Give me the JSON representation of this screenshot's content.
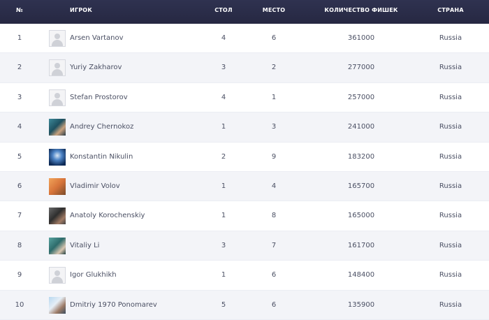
{
  "headers": {
    "num": "№",
    "player": "ИГРОК",
    "table": "СТОЛ",
    "place": "МЕСТО",
    "chips": "КОЛИЧЕСТВО ФИШЕК",
    "country": "СТРАНА"
  },
  "rows": [
    {
      "num": "1",
      "player": "Arsen Vartanov",
      "table": "4",
      "place": "6",
      "chips": "361000",
      "country": "Russia",
      "avatar": "placeholder-avatar-icon"
    },
    {
      "num": "2",
      "player": "Yuriy Zakharov",
      "table": "3",
      "place": "2",
      "chips": "277000",
      "country": "Russia",
      "avatar": "placeholder-avatar-icon"
    },
    {
      "num": "3",
      "player": "Stefan Prostorov",
      "table": "4",
      "place": "1",
      "chips": "257000",
      "country": "Russia",
      "avatar": "placeholder-avatar-icon"
    },
    {
      "num": "4",
      "player": "Andrey Chernokoz",
      "table": "1",
      "place": "3",
      "chips": "241000",
      "country": "Russia",
      "avatar": "player-photo"
    },
    {
      "num": "5",
      "player": "Konstantin Nikulin",
      "table": "2",
      "place": "9",
      "chips": "183200",
      "country": "Russia",
      "avatar": "player-photo"
    },
    {
      "num": "6",
      "player": "Vladimir Volov",
      "table": "1",
      "place": "4",
      "chips": "165700",
      "country": "Russia",
      "avatar": "player-photo"
    },
    {
      "num": "7",
      "player": "Anatoly Korochenskiy",
      "table": "1",
      "place": "8",
      "chips": "165000",
      "country": "Russia",
      "avatar": "player-photo"
    },
    {
      "num": "8",
      "player": "Vitaliy Li",
      "table": "3",
      "place": "7",
      "chips": "161700",
      "country": "Russia",
      "avatar": "player-photo"
    },
    {
      "num": "9",
      "player": "Igor Glukhikh",
      "table": "1",
      "place": "6",
      "chips": "148400",
      "country": "Russia",
      "avatar": "placeholder-avatar-icon"
    },
    {
      "num": "10",
      "player": "Dmitriy 1970 Ponomarev",
      "table": "5",
      "place": "6",
      "chips": "135900",
      "country": "Russia",
      "avatar": "player-photo"
    }
  ],
  "colors": {
    "header_bg": "#2b2d4a",
    "alt_row_bg": "#f3f4f8",
    "text": "#4a4f63"
  }
}
